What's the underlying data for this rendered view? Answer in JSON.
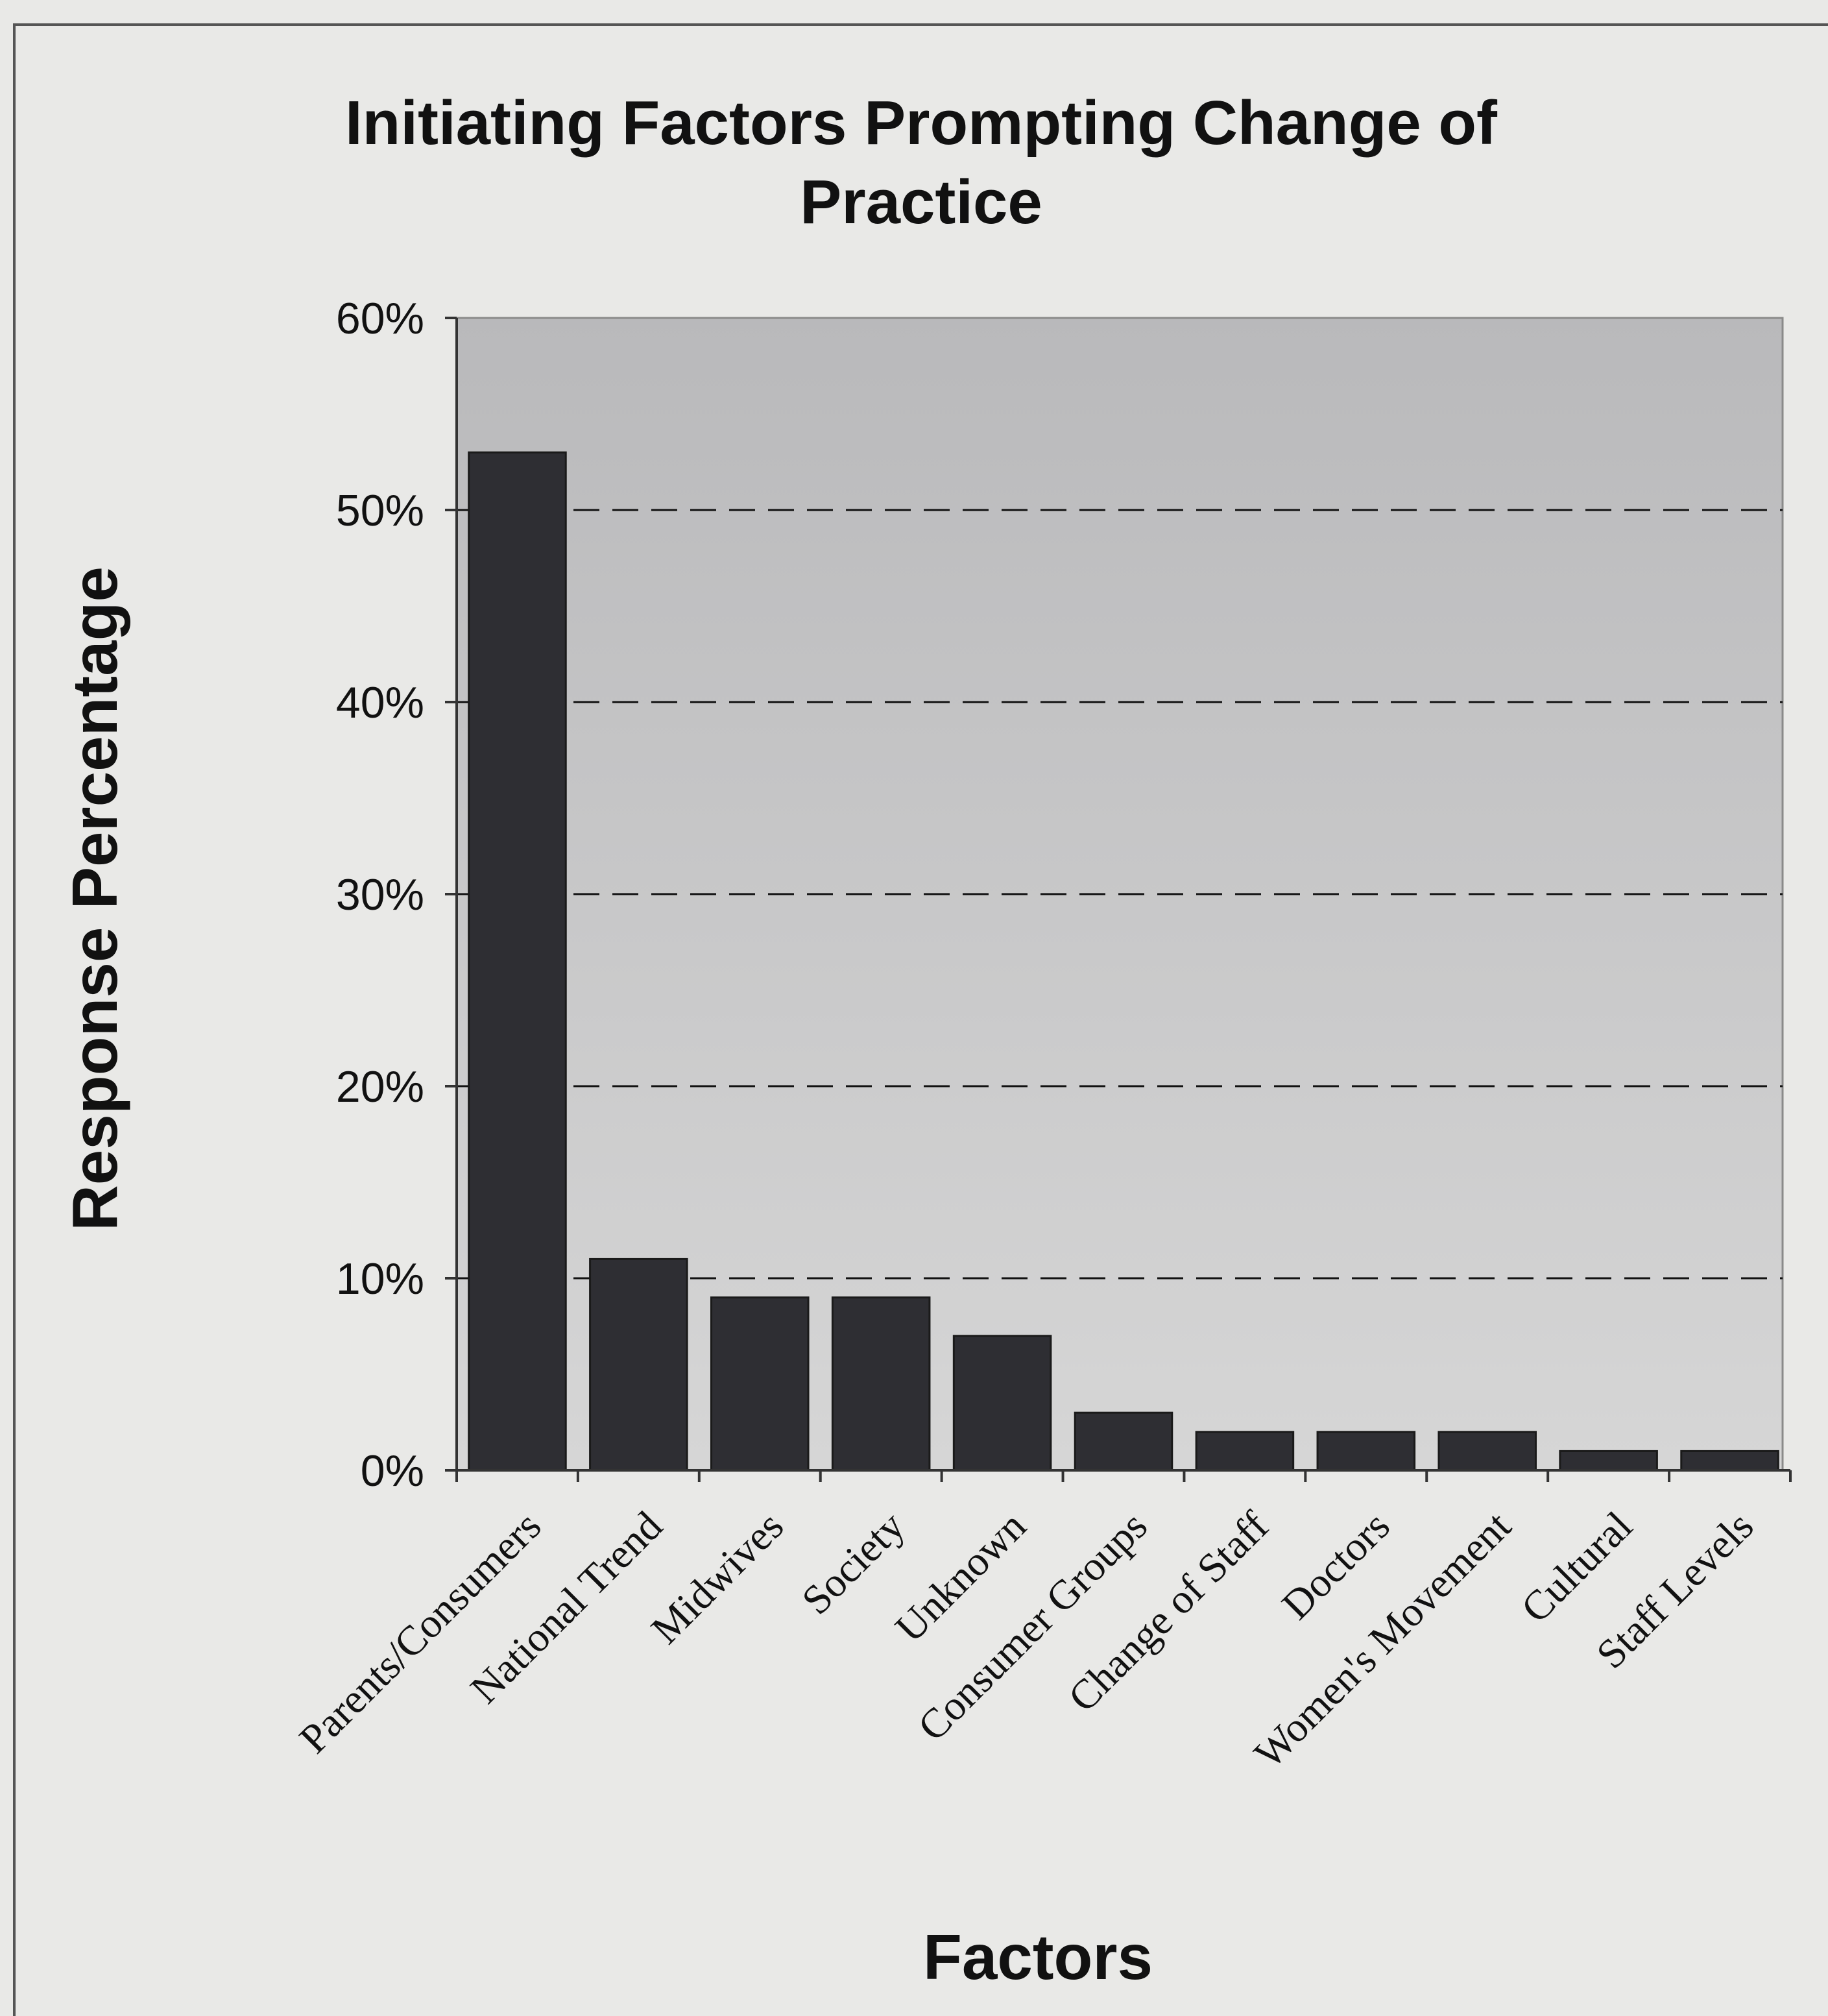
{
  "chart_data": {
    "type": "bar",
    "title": "Initiating Factors Prompting Change of Practice",
    "title_lines": [
      "Initiating Factors Prompting Change of",
      "Practice"
    ],
    "xlabel": "Factors",
    "ylabel": "Response Percentage",
    "ylim": [
      0,
      60
    ],
    "yticks": [
      "0%",
      "10%",
      "20%",
      "30%",
      "40%",
      "50%",
      "60%"
    ],
    "ytick_values": [
      0,
      10,
      20,
      30,
      40,
      50,
      60
    ],
    "grid": "dashed horizontal",
    "categories": [
      "Parents/Consumers",
      "National Trend",
      "Midwives",
      "Society",
      "Unknown",
      "Consumer Groups",
      "Change of Staff",
      "Doctors",
      "Women's Movement",
      "Cultural",
      "Staff Levels"
    ],
    "values": [
      53,
      11,
      9,
      9,
      7,
      3,
      2,
      2,
      2,
      1,
      1
    ],
    "colors": {
      "bar": "#2e2e33",
      "plot_top": "#b9b9bb",
      "plot_bottom": "#d6d6d6"
    }
  }
}
